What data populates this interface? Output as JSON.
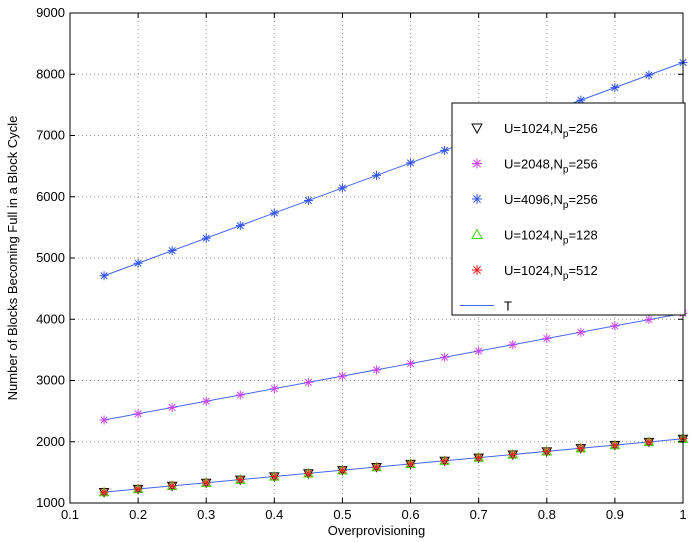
{
  "chart_data": {
    "type": "scatter",
    "xlabel": "Overprovisioning",
    "ylabel": "Number of Blocks Becoming Full in a Block Cycle",
    "xlim": [
      0.1,
      1
    ],
    "ylim": [
      1000,
      9000
    ],
    "xticks": [
      0.1,
      0.2,
      0.3,
      0.4,
      0.5,
      0.6,
      0.7,
      0.8,
      0.9,
      1
    ],
    "xtick_labels": [
      "0.1",
      "0.2",
      "0.3",
      "0.4",
      "0.5",
      "0.6",
      "0.7",
      "0.8",
      "0.9",
      "1"
    ],
    "yticks": [
      1000,
      2000,
      3000,
      4000,
      5000,
      6000,
      7000,
      8000,
      9000
    ],
    "ytick_labels": [
      "1000",
      "2000",
      "3000",
      "4000",
      "5000",
      "6000",
      "7000",
      "8000",
      "9000"
    ],
    "grid": true,
    "legend_position": "right",
    "x": [
      0.15,
      0.2,
      0.25,
      0.3,
      0.35,
      0.4,
      0.45,
      0.5,
      0.55,
      0.6,
      0.65,
      0.7,
      0.75,
      0.8,
      0.85,
      0.9,
      0.95,
      1.0
    ],
    "series": [
      {
        "name": "U=1024,Np=256",
        "legend_main": "U=1024,N",
        "legend_sub": "p",
        "legend_tail": "=256",
        "marker": "triangle-down",
        "color": "#000000",
        "values": [
          1177,
          1228,
          1279,
          1330,
          1381,
          1433,
          1484,
          1535,
          1586,
          1638,
          1689,
          1740,
          1791,
          1842,
          1894,
          1945,
          1996,
          2048
        ]
      },
      {
        "name": "U=2048,Np=256",
        "legend_main": "U=2048,N",
        "legend_sub": "p",
        "legend_tail": "=256",
        "marker": "asterisk",
        "color": "#cc44ee",
        "values": [
          2355,
          2457,
          2560,
          2662,
          2764,
          2867,
          2969,
          3072,
          3174,
          3276,
          3379,
          3481,
          3584,
          3686,
          3788,
          3891,
          3993,
          4096
        ]
      },
      {
        "name": "U=4096,Np=256",
        "legend_main": "U=4096,N",
        "legend_sub": "p",
        "legend_tail": "=256",
        "marker": "asterisk",
        "color": "#3355ee",
        "values": [
          4710,
          4915,
          5120,
          5324,
          5529,
          5734,
          5939,
          6144,
          6348,
          6553,
          6758,
          6963,
          7168,
          7372,
          7577,
          7782,
          7987,
          8192
        ]
      },
      {
        "name": "U=1024,Np=128",
        "legend_main": "U=1024,N",
        "legend_sub": "p",
        "legend_tail": "=128",
        "marker": "triangle-up",
        "color": "#33dd00",
        "values": [
          1177,
          1228,
          1279,
          1330,
          1381,
          1433,
          1484,
          1535,
          1586,
          1638,
          1689,
          1740,
          1791,
          1842,
          1894,
          1945,
          1996,
          2048
        ]
      },
      {
        "name": "U=1024,Np=512",
        "legend_main": "U=1024,N",
        "legend_sub": "p",
        "legend_tail": "=512",
        "marker": "asterisk",
        "color": "#ee2222",
        "values": [
          1177,
          1228,
          1279,
          1330,
          1381,
          1433,
          1484,
          1535,
          1586,
          1638,
          1689,
          1740,
          1791,
          1842,
          1894,
          1945,
          1996,
          2048
        ]
      }
    ],
    "theory_line": {
      "name": "T",
      "color": "#4466ee",
      "lines": [
        {
          "x": [
            0.15,
            1.0
          ],
          "y": [
            1177,
            2048
          ]
        },
        {
          "x": [
            0.15,
            1.0
          ],
          "y": [
            2355,
            4096
          ]
        },
        {
          "x": [
            0.15,
            1.0
          ],
          "y": [
            4710,
            8192
          ]
        }
      ]
    }
  }
}
